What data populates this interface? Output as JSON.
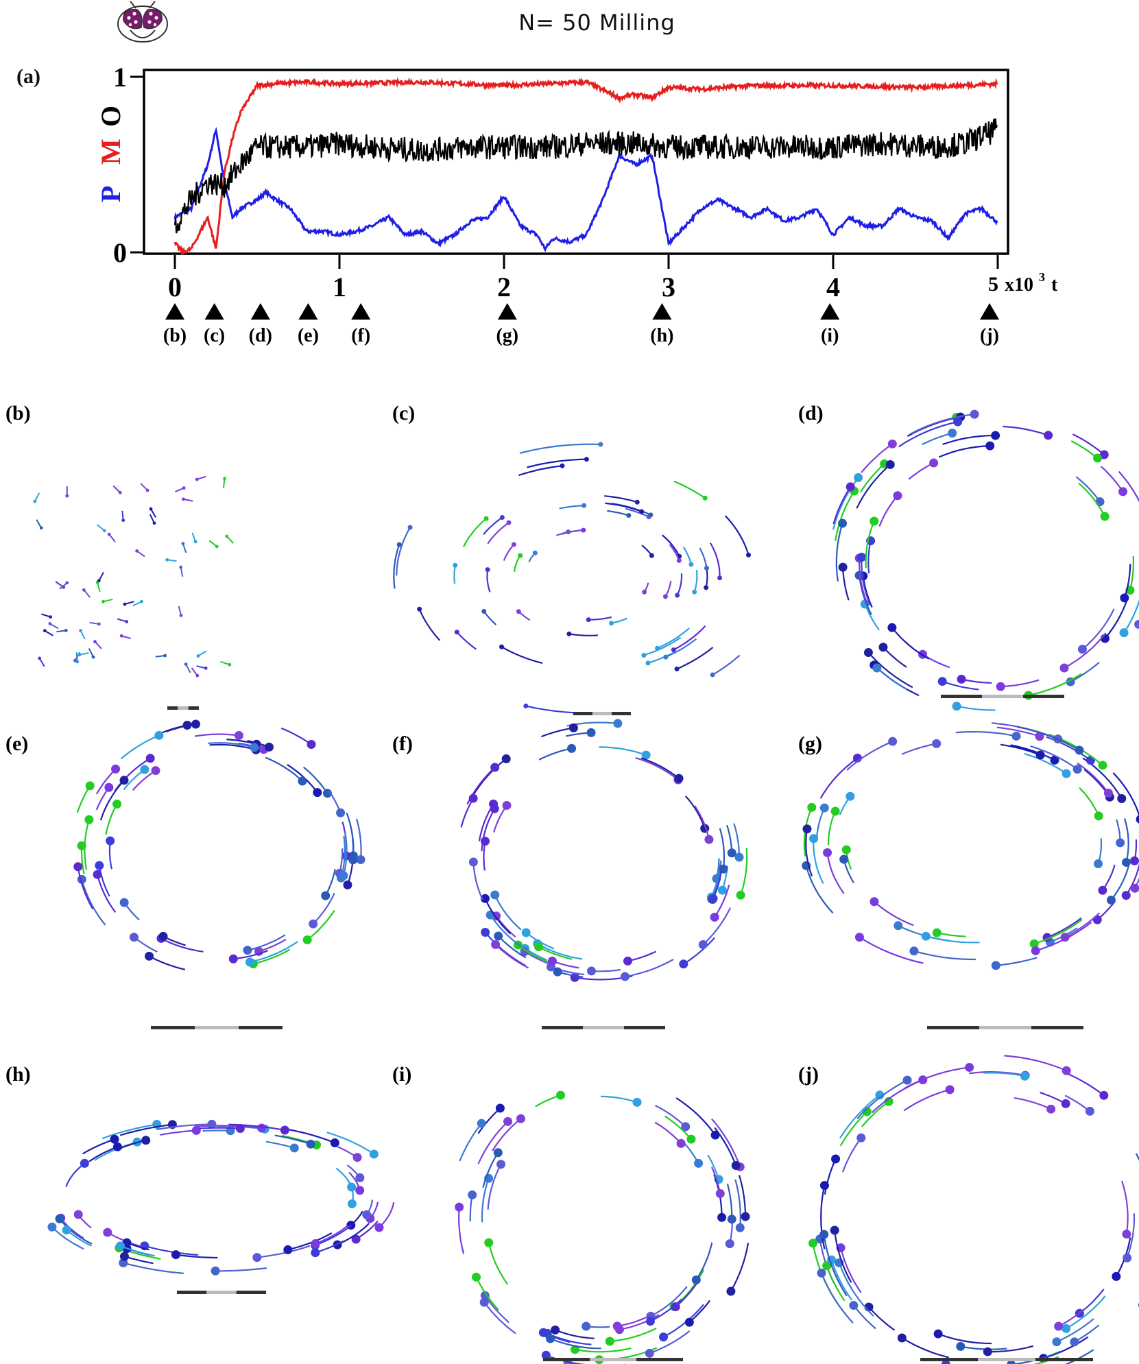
{
  "header": {
    "title": "N= 50 Milling"
  },
  "colors": {
    "P": "#1e1ee6",
    "M": "#e61e1e",
    "O": "#000000"
  },
  "panel_a": {
    "label": "(a)",
    "y_axis_letters": [
      "P",
      "M",
      "O"
    ],
    "y_ticks": [
      "0",
      "1"
    ],
    "x_ticks": [
      "0",
      "1",
      "2",
      "3",
      "4"
    ],
    "x_last_tick": "5",
    "x_unit": "x10",
    "x_unit_exp": "3",
    "x_unit_var": "t",
    "markers": [
      {
        "label": "(b)",
        "t": 0.0
      },
      {
        "label": "(c)",
        "t": 0.24
      },
      {
        "label": "(d)",
        "t": 0.52
      },
      {
        "label": "(e)",
        "t": 0.81
      },
      {
        "label": "(f)",
        "t": 1.13
      },
      {
        "label": "(g)",
        "t": 2.02
      },
      {
        "label": "(h)",
        "t": 2.96
      },
      {
        "label": "(i)",
        "t": 3.98
      },
      {
        "label": "(j)",
        "t": 4.95
      }
    ]
  },
  "chart_data": {
    "type": "line",
    "xlabel": "x10^3 t",
    "ylabel": "P M O",
    "xlim": [
      0,
      5
    ],
    "ylim": [
      0,
      1
    ],
    "series": [
      {
        "name": "P",
        "color": "#1e1ee6",
        "x": [
          0.0,
          0.1,
          0.2,
          0.25,
          0.3,
          0.35,
          0.4,
          0.5,
          0.55,
          0.7,
          0.8,
          0.9,
          1.0,
          1.1,
          1.2,
          1.3,
          1.4,
          1.5,
          1.6,
          1.7,
          1.8,
          1.9,
          2.0,
          2.1,
          2.2,
          2.25,
          2.3,
          2.4,
          2.5,
          2.6,
          2.7,
          2.8,
          2.9,
          3.0,
          3.1,
          3.2,
          3.3,
          3.4,
          3.5,
          3.6,
          3.7,
          3.8,
          3.9,
          4.0,
          4.1,
          4.2,
          4.3,
          4.4,
          4.5,
          4.6,
          4.7,
          4.8,
          4.9,
          5.0
        ],
        "values": [
          0.2,
          0.25,
          0.5,
          0.7,
          0.4,
          0.2,
          0.25,
          0.3,
          0.34,
          0.25,
          0.12,
          0.12,
          0.1,
          0.12,
          0.15,
          0.2,
          0.1,
          0.12,
          0.05,
          0.1,
          0.18,
          0.2,
          0.32,
          0.15,
          0.1,
          0.02,
          0.08,
          0.06,
          0.1,
          0.3,
          0.55,
          0.5,
          0.55,
          0.05,
          0.15,
          0.25,
          0.3,
          0.25,
          0.2,
          0.25,
          0.18,
          0.2,
          0.25,
          0.1,
          0.2,
          0.15,
          0.15,
          0.25,
          0.2,
          0.18,
          0.08,
          0.22,
          0.25,
          0.17
        ]
      },
      {
        "name": "M",
        "color": "#e61e1e",
        "x": [
          0.0,
          0.05,
          0.1,
          0.2,
          0.25,
          0.3,
          0.35,
          0.4,
          0.5,
          0.6,
          0.8,
          1.0,
          1.5,
          2.0,
          2.5,
          2.7,
          2.8,
          2.9,
          3.0,
          3.2,
          3.5,
          4.0,
          4.5,
          5.0
        ],
        "values": [
          0.05,
          0.0,
          0.02,
          0.2,
          0.02,
          0.45,
          0.65,
          0.8,
          0.95,
          0.96,
          0.97,
          0.96,
          0.97,
          0.95,
          0.97,
          0.88,
          0.9,
          0.88,
          0.94,
          0.93,
          0.95,
          0.95,
          0.94,
          0.96
        ]
      },
      {
        "name": "O",
        "color": "#000000",
        "x": [
          0.0,
          0.1,
          0.2,
          0.3,
          0.4,
          0.5,
          0.6,
          0.8,
          1.0,
          1.2,
          1.5,
          1.8,
          2.0,
          2.3,
          2.5,
          2.8,
          3.0,
          3.3,
          3.6,
          4.0,
          4.3,
          4.6,
          4.8,
          5.0
        ],
        "values": [
          0.15,
          0.3,
          0.4,
          0.38,
          0.5,
          0.6,
          0.6,
          0.6,
          0.62,
          0.6,
          0.58,
          0.6,
          0.6,
          0.6,
          0.62,
          0.62,
          0.6,
          0.6,
          0.6,
          0.6,
          0.62,
          0.6,
          0.62,
          0.7
        ]
      }
    ]
  },
  "snapshots": [
    {
      "label": "(b)",
      "state": "disordered"
    },
    {
      "label": "(c)",
      "state": "forming"
    },
    {
      "label": "(d)",
      "state": "ring"
    },
    {
      "label": "(e)",
      "state": "ring"
    },
    {
      "label": "(f)",
      "state": "ring"
    },
    {
      "label": "(g)",
      "state": "ellipse"
    },
    {
      "label": "(h)",
      "state": "ellipse"
    },
    {
      "label": "(i)",
      "state": "ring"
    },
    {
      "label": "(j)",
      "state": "ring"
    }
  ]
}
